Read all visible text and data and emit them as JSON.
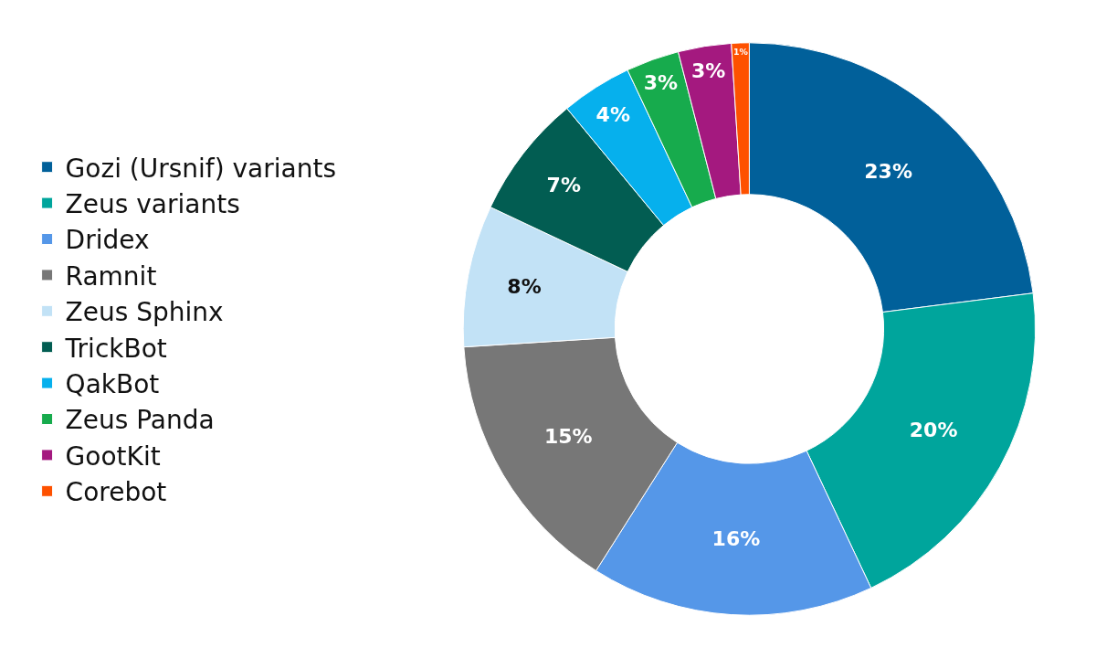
{
  "chart_data": {
    "type": "donut",
    "categories": [
      "Gozi (Ursnif) variants",
      "Zeus variants",
      "Dridex",
      "Ramnit",
      "Zeus Sphinx",
      "TrickBot",
      "QakBot",
      "Zeus Panda",
      "GootKit",
      "Corebot"
    ],
    "values": [
      23,
      20,
      16,
      15,
      8,
      7,
      4,
      3,
      3,
      1
    ],
    "colors": [
      "#01609a",
      "#00a59c",
      "#5597e8",
      "#777777",
      "#c2e2f6",
      "#025d52",
      "#06b0ed",
      "#17ab4d",
      "#a4197f",
      "#fe5100"
    ],
    "value_labels": [
      "23%",
      "20%",
      "16%",
      "15%",
      "8%",
      "7%",
      "4%",
      "3%",
      "3%",
      "1%"
    ],
    "legend": "left"
  }
}
